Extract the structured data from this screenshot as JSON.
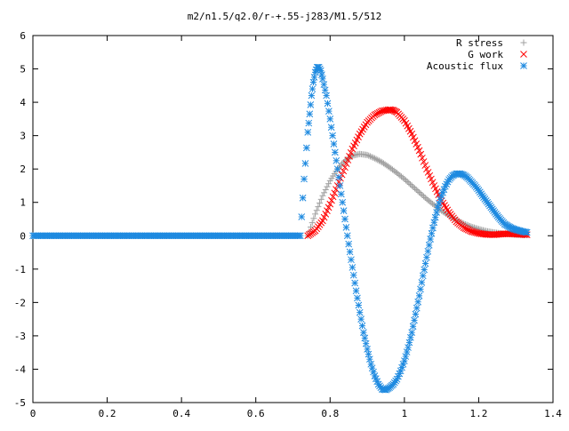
{
  "chart_data": {
    "type": "scatter",
    "title": "m2/n1.5/q2.0/r-+.55-j283/M1.5/512",
    "xlabel": "",
    "ylabel": "",
    "xlim": [
      0,
      1.4
    ],
    "ylim": [
      -5,
      6
    ],
    "x_ticks": [
      "0",
      "0.2",
      "0.4",
      "0.6",
      "0.8",
      "1",
      "1.2",
      "1.4"
    ],
    "y_ticks": [
      "6",
      "5",
      "4",
      "3",
      "2",
      "1",
      "0",
      "-1",
      "-2",
      "-3",
      "-4",
      "-5"
    ],
    "grid": false,
    "legend_position": "top-right",
    "series": [
      {
        "name": "R stress",
        "marker": "plus",
        "color": "#a0a0a0",
        "x": [
          0.74,
          0.76,
          0.78,
          0.8,
          0.82,
          0.84,
          0.86,
          0.88,
          0.9,
          0.92,
          0.94,
          0.96,
          0.98,
          1.0,
          1.02,
          1.04,
          1.06,
          1.08,
          1.1,
          1.12,
          1.14,
          1.16,
          1.18,
          1.2,
          1.22,
          1.24,
          1.26,
          1.28,
          1.3,
          1.33
        ],
        "y": [
          0.0,
          0.65,
          1.2,
          1.65,
          2.0,
          2.25,
          2.4,
          2.45,
          2.42,
          2.32,
          2.2,
          2.05,
          1.88,
          1.7,
          1.5,
          1.3,
          1.1,
          0.92,
          0.75,
          0.6,
          0.47,
          0.36,
          0.27,
          0.2,
          0.14,
          0.1,
          0.07,
          0.05,
          0.03,
          0.02
        ]
      },
      {
        "name": "G work",
        "marker": "cross",
        "color": "#ff0000",
        "x": [
          0.74,
          0.76,
          0.78,
          0.8,
          0.82,
          0.84,
          0.86,
          0.88,
          0.9,
          0.92,
          0.94,
          0.96,
          0.97,
          0.98,
          1.0,
          1.02,
          1.04,
          1.06,
          1.08,
          1.1,
          1.12,
          1.14,
          1.16,
          1.18,
          1.2,
          1.22,
          1.24,
          1.26,
          1.28,
          1.3,
          1.33
        ],
        "y": [
          0.0,
          0.15,
          0.45,
          0.95,
          1.5,
          2.05,
          2.6,
          3.05,
          3.4,
          3.62,
          3.74,
          3.78,
          3.76,
          3.7,
          3.45,
          3.05,
          2.55,
          2.0,
          1.5,
          1.05,
          0.7,
          0.42,
          0.24,
          0.13,
          0.07,
          0.04,
          0.03,
          0.05,
          0.06,
          0.05,
          0.03
        ]
      },
      {
        "name": "Acoustic flux",
        "marker": "star",
        "color": "#1e8ae0",
        "x": [
          0.0,
          0.02,
          0.04,
          0.06,
          0.08,
          0.1,
          0.12,
          0.14,
          0.16,
          0.18,
          0.2,
          0.22,
          0.24,
          0.26,
          0.28,
          0.3,
          0.32,
          0.34,
          0.36,
          0.38,
          0.4,
          0.42,
          0.44,
          0.46,
          0.48,
          0.5,
          0.52,
          0.54,
          0.56,
          0.58,
          0.6,
          0.62,
          0.64,
          0.66,
          0.68,
          0.7,
          0.72,
          0.73,
          0.74,
          0.745,
          0.75,
          0.755,
          0.76,
          0.765,
          0.77,
          0.775,
          0.78,
          0.79,
          0.8,
          0.81,
          0.82,
          0.83,
          0.84,
          0.85,
          0.86,
          0.87,
          0.88,
          0.89,
          0.9,
          0.91,
          0.92,
          0.93,
          0.94,
          0.95,
          0.96,
          0.97,
          0.98,
          0.99,
          1.0,
          1.01,
          1.02,
          1.03,
          1.04,
          1.05,
          1.06,
          1.07,
          1.08,
          1.09,
          1.1,
          1.11,
          1.12,
          1.13,
          1.14,
          1.15,
          1.16,
          1.17,
          1.18,
          1.19,
          1.2,
          1.21,
          1.22,
          1.23,
          1.24,
          1.25,
          1.26,
          1.27,
          1.28,
          1.29,
          1.3,
          1.31,
          1.32,
          1.33
        ],
        "y": [
          0,
          0,
          0,
          0,
          0,
          0,
          0,
          0,
          0,
          0,
          0,
          0,
          0,
          0,
          0,
          0,
          0,
          0,
          0,
          0,
          0,
          0,
          0,
          0,
          0,
          0,
          0,
          0,
          0,
          0,
          0,
          0,
          0,
          0,
          0,
          0,
          0,
          1.7,
          3.1,
          3.65,
          4.2,
          4.6,
          4.9,
          5.05,
          5.05,
          4.95,
          4.7,
          4.2,
          3.5,
          2.75,
          2.0,
          1.25,
          0.5,
          -0.25,
          -0.95,
          -1.65,
          -2.3,
          -2.9,
          -3.4,
          -3.85,
          -4.2,
          -4.45,
          -4.6,
          -4.62,
          -4.55,
          -4.45,
          -4.3,
          -4.05,
          -3.75,
          -3.35,
          -2.9,
          -2.35,
          -1.8,
          -1.2,
          -0.65,
          -0.1,
          0.4,
          0.85,
          1.2,
          1.48,
          1.68,
          1.8,
          1.86,
          1.86,
          1.82,
          1.74,
          1.62,
          1.5,
          1.36,
          1.2,
          1.05,
          0.9,
          0.75,
          0.6,
          0.47,
          0.35,
          0.28,
          0.22,
          0.18,
          0.15,
          0.12,
          0.1
        ]
      }
    ]
  }
}
